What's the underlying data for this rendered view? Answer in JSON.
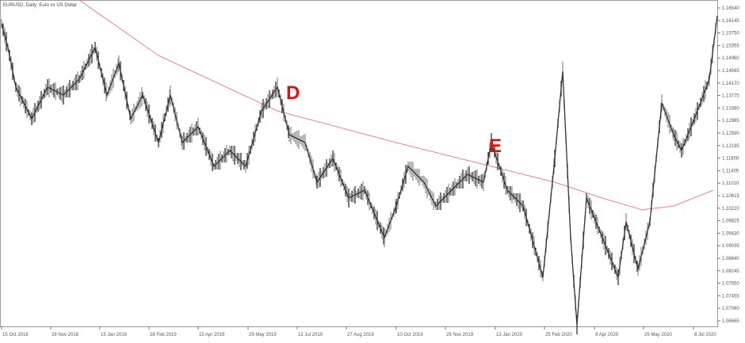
{
  "chart_data": {
    "type": "line",
    "title": "EURUSD, Daily: Euro vs US Dollar",
    "x_ticks": [
      "15 Oct 2018",
      "28 Nov 2018",
      "15 Jan 2019",
      "28 Feb 2019",
      "15 Apr 2019",
      "29 May 2019",
      "12 Jul 2019",
      "27 Aug 2019",
      "10 Oct 2019",
      "25 Nov 2019",
      "13 Jan 2020",
      "25 Feb 2020",
      "9 Apr 2020",
      "25 May 2020",
      "8 Jul 2020"
    ],
    "y_ticks": [
      "1.16540",
      "1.16145",
      "1.15750",
      "1.15355",
      "1.14960",
      "1.14565",
      "1.14170",
      "1.13775",
      "1.13380",
      "1.12985",
      "1.12590",
      "1.12195",
      "1.11800",
      "1.11405",
      "1.11010",
      "1.10615",
      "1.10220",
      "1.09825",
      "1.09430",
      "1.09035",
      "1.08640",
      "1.08245",
      "1.07850",
      "1.07455",
      "1.07060",
      "1.06665"
    ],
    "ylim": [
      1.0644,
      1.1679
    ],
    "grid": false,
    "series": [
      {
        "color": "#333333",
        "values": [
          1.1604,
          1.1529,
          1.1404,
          1.1304,
          1.1404,
          1.1379,
          1.1429,
          1.1529,
          1.1379,
          1.1479,
          1.1304,
          1.1379,
          1.1229,
          1.1379,
          1.1229,
          1.1279,
          1.1154,
          1.1204,
          1.1154,
          1.1329,
          1.1404,
          1.1254,
          1.1229,
          1.1104,
          1.1179,
          1.1054,
          1.1079,
          1.0929,
          1.1029,
          1.1154,
          1.1104,
          1.1029,
          1.1079,
          1.1129,
          1.1104,
          1.1229,
          1.1079,
          1.1029,
          1.0804,
          1.1179,
          1.1454,
          1.0929,
          1.0654,
          1.1054,
          1.0929,
          1.0804,
          1.0979,
          1.0829,
          1.0979,
          1.1354,
          1.1254,
          1.1204,
          1.1329,
          1.1429,
          1.1629
        ]
      },
      {
        "color": "#f08080",
        "values": [
          1.1679,
          1.1504,
          1.1329,
          1.1229,
          1.1154,
          1.1104,
          1.1054,
          1.1017,
          1.1029,
          1.1079
        ]
      }
    ],
    "annotations": [
      {
        "text": "D"
      },
      {
        "text": "E"
      }
    ]
  }
}
